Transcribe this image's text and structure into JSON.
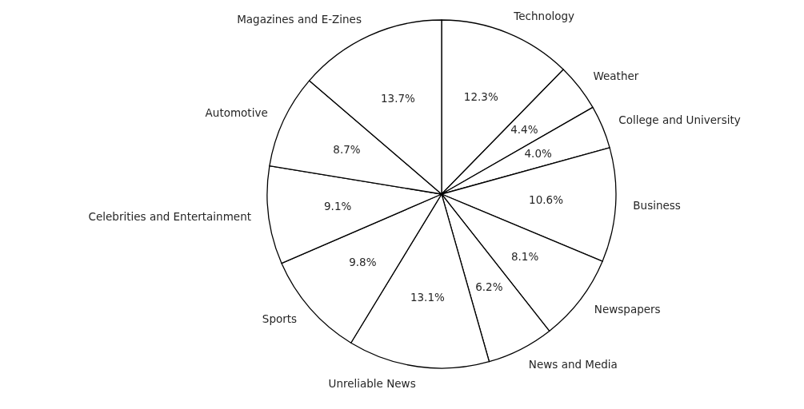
{
  "chart_data": {
    "type": "pie",
    "categories": [
      "Technology",
      "Weather",
      "College and University",
      "Business",
      "Newspapers",
      "News and Media",
      "Unreliable News",
      "Sports",
      "Celebrities and Entertainment",
      "Automotive",
      "Magazines and E-Zines"
    ],
    "values": [
      12.3,
      4.4,
      4.0,
      10.6,
      8.1,
      6.2,
      13.1,
      9.8,
      9.1,
      8.7,
      13.7
    ],
    "colors": [
      "#ffffff",
      "#ffffff",
      "#ffffff",
      "#ffffff",
      "#ffffff",
      "#ffffff",
      "#ffffff",
      "#ffffff",
      "#ffffff",
      "#ffffff",
      "#ffffff"
    ],
    "value_labels": [
      "12.3%",
      "4.4%",
      "4.0%",
      "10.6%",
      "8.1%",
      "6.2%",
      "13.1%",
      "9.8%",
      "9.1%",
      "8.7%",
      "13.7%"
    ]
  }
}
